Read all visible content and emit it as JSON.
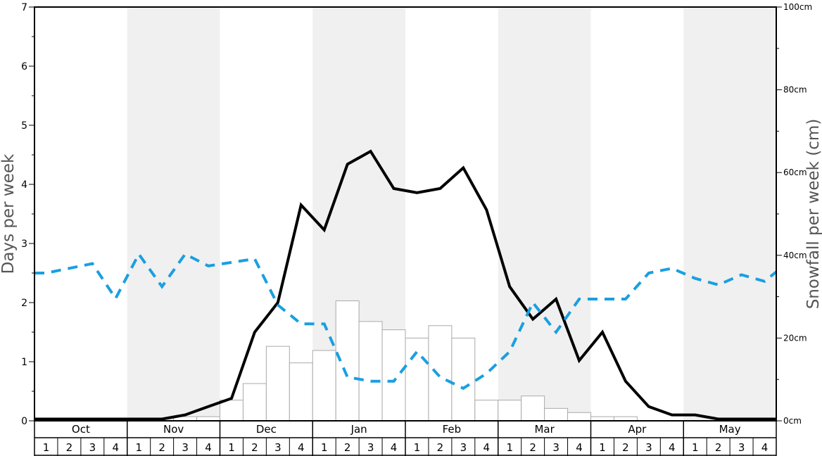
{
  "chart_data": {
    "type": "bar",
    "ylabel_left": "Days per week",
    "ylabel_right": "Snowfall per week (cm)",
    "ylim_left": [
      0,
      7
    ],
    "ylim_right": [
      0,
      100
    ],
    "yticks_left": [
      "0",
      "1",
      "2",
      "3",
      "4",
      "5",
      "6",
      "7"
    ],
    "yticks_right": [
      "0cm",
      "20cm",
      "40cm",
      "60cm",
      "80cm",
      "100cm"
    ],
    "months": [
      "Oct",
      "Nov",
      "Dec",
      "Jan",
      "Feb",
      "Mar",
      "Apr",
      "May"
    ],
    "weeks": [
      "1",
      "2",
      "3",
      "4"
    ],
    "shaded_months": [
      1,
      3,
      5,
      7
    ],
    "colors": {
      "snowfall_bars": "#ffffff",
      "bar_stroke": "#aaaaaa",
      "snow_days_line": "#000000",
      "dashed_line": "#1a9fe0",
      "shade": "#f0f0f0"
    },
    "series": [
      {
        "type": "bar",
        "axis": "right",
        "values": [
          0,
          0,
          0,
          0,
          0,
          0,
          1,
          1,
          5,
          9,
          18,
          14,
          17,
          29,
          24,
          22,
          20,
          23,
          20,
          5,
          5,
          6,
          3,
          2,
          1,
          1,
          0,
          0,
          0,
          0,
          0,
          0
        ]
      },
      {
        "type": "line",
        "axis": "left",
        "style": "solid",
        "values": [
          0.03,
          0.03,
          0.03,
          0.03,
          0.03,
          0.03,
          0.1,
          0.24,
          0.38,
          1.5,
          2.0,
          3.65,
          3.23,
          4.34,
          4.56,
          3.93,
          3.86,
          3.93,
          4.28,
          3.57,
          2.27,
          1.72,
          2.06,
          1.02,
          1.5,
          0.67,
          0.24,
          0.1,
          0.1,
          0.03,
          0.03,
          0.03
        ]
      },
      {
        "type": "line",
        "axis": "left",
        "style": "dashed",
        "values": [
          2.5,
          2.58,
          2.66,
          2.07,
          2.82,
          2.27,
          2.82,
          2.62,
          2.68,
          2.74,
          1.96,
          1.64,
          1.64,
          0.74,
          0.67,
          0.67,
          1.17,
          0.74,
          0.55,
          0.8,
          1.17,
          2.0,
          1.5,
          2.06,
          2.06,
          2.06,
          2.5,
          2.58,
          2.41,
          2.3,
          2.47,
          2.36
        ]
      }
    ],
    "last_point_dashed": 2.52
  }
}
